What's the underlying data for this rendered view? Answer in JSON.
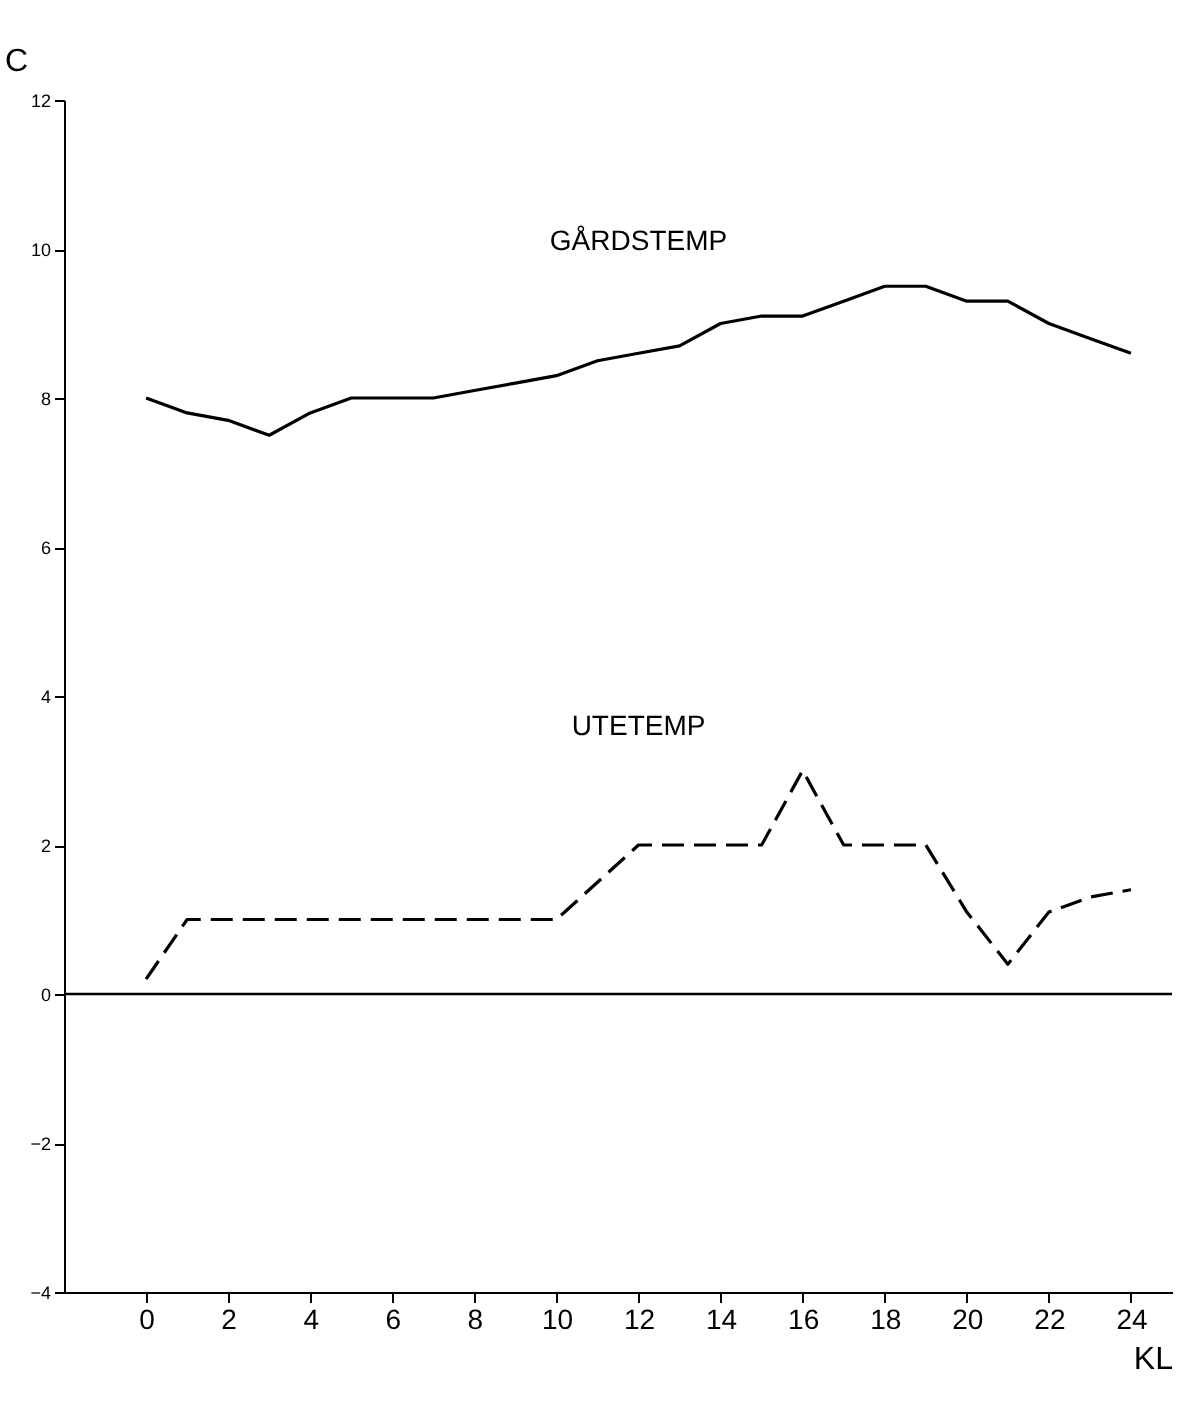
{
  "chart_data": {
    "type": "line",
    "ylabel": "C",
    "xlabel": "KL",
    "grid": false,
    "marker": "none",
    "xlim": [
      -2,
      25
    ],
    "xticks": [
      0,
      2,
      4,
      6,
      8,
      10,
      12,
      14,
      16,
      18,
      20,
      22,
      24
    ],
    "ylim": [
      -4,
      12
    ],
    "yticks": [
      -4,
      -2,
      0,
      2,
      4,
      6,
      8,
      10,
      12
    ],
    "x": [
      0,
      1,
      2,
      3,
      4,
      5,
      6,
      7,
      8,
      9,
      10,
      11,
      12,
      13,
      14,
      15,
      16,
      17,
      18,
      19,
      20,
      21,
      22,
      23,
      24
    ],
    "series": [
      {
        "color": "#000000",
        "line_style": "solid",
        "values": [
          8.0,
          7.8,
          7.7,
          7.5,
          7.8,
          8.0,
          8.0,
          8.0,
          8.1,
          8.2,
          8.3,
          8.5,
          8.6,
          8.7,
          9.0,
          9.1,
          9.1,
          9.3,
          9.5,
          9.5,
          9.3,
          9.3,
          9.0,
          8.8,
          8.6
        ]
      },
      {
        "color": "#000000",
        "line_style": "dashed",
        "values": [
          0.2,
          1,
          1,
          1,
          1,
          1,
          1,
          1,
          1,
          1,
          1,
          1.5,
          2,
          2,
          2,
          2,
          3,
          2,
          2,
          2,
          1.1,
          0.4,
          1.1,
          1.3,
          1.4
        ]
      }
    ],
    "ref_lines": [
      {
        "axis": "y",
        "value": 0,
        "color": "#000000",
        "line_style": "solid"
      }
    ],
    "annotations": [
      "GÅRDSTEMP",
      "UTETEMP"
    ]
  }
}
